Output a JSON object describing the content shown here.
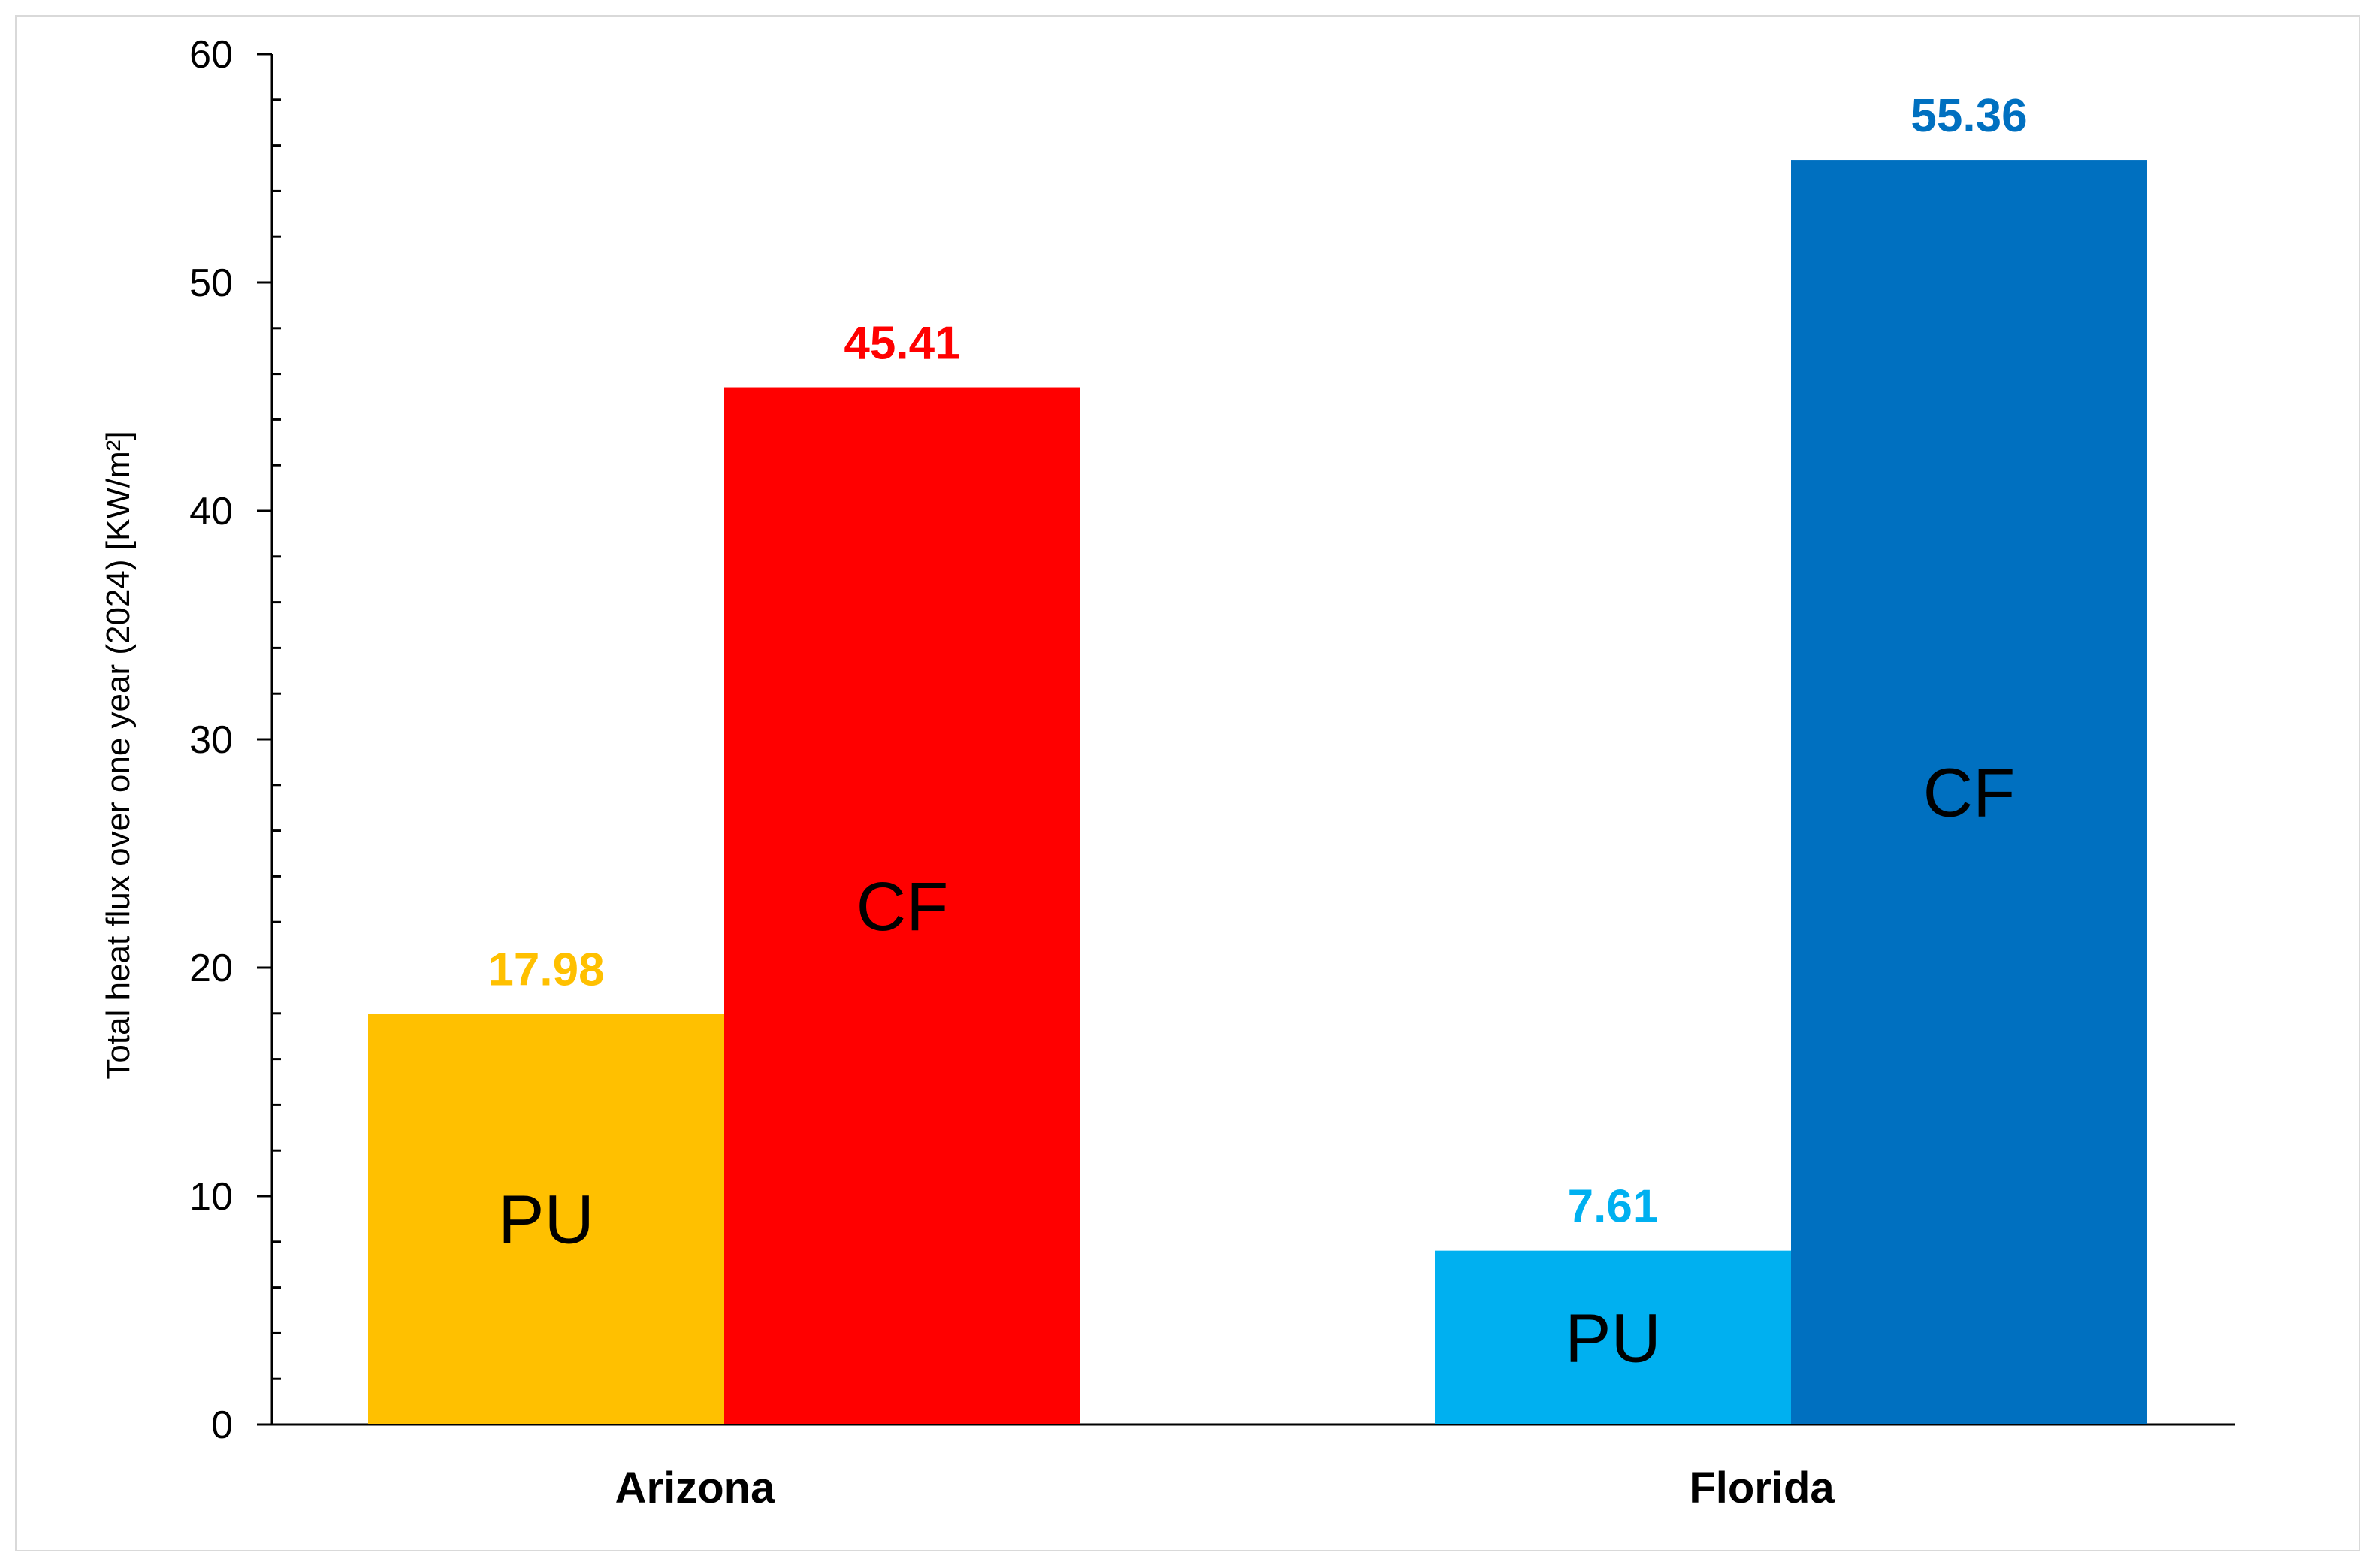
{
  "chart_data": {
    "type": "bar",
    "categories": [
      "Arizona",
      "Florida"
    ],
    "bars": [
      {
        "category": "Arizona",
        "label": "PU",
        "value": 17.98,
        "value_label": "17.98",
        "color": "#FFC000"
      },
      {
        "category": "Arizona",
        "label": "CF",
        "value": 45.41,
        "value_label": "45.41",
        "color": "#FF0000"
      },
      {
        "category": "Florida",
        "label": "PU",
        "value": 7.61,
        "value_label": "7.61",
        "color": "#00B0F0"
      },
      {
        "category": "Florida",
        "label": "CF",
        "value": 55.36,
        "value_label": "55.36",
        "color": "#0070C0"
      }
    ],
    "ylabel": "Total heat flux over one year (2024) [KW/m²]",
    "xlabel": "",
    "ylim": [
      0,
      60
    ],
    "yticks": [
      0,
      10,
      20,
      30,
      40,
      50,
      60
    ],
    "ytick_labels": [
      "0",
      "10",
      "20",
      "30",
      "40",
      "50",
      "60"
    ],
    "grid": false,
    "legend": "none"
  }
}
